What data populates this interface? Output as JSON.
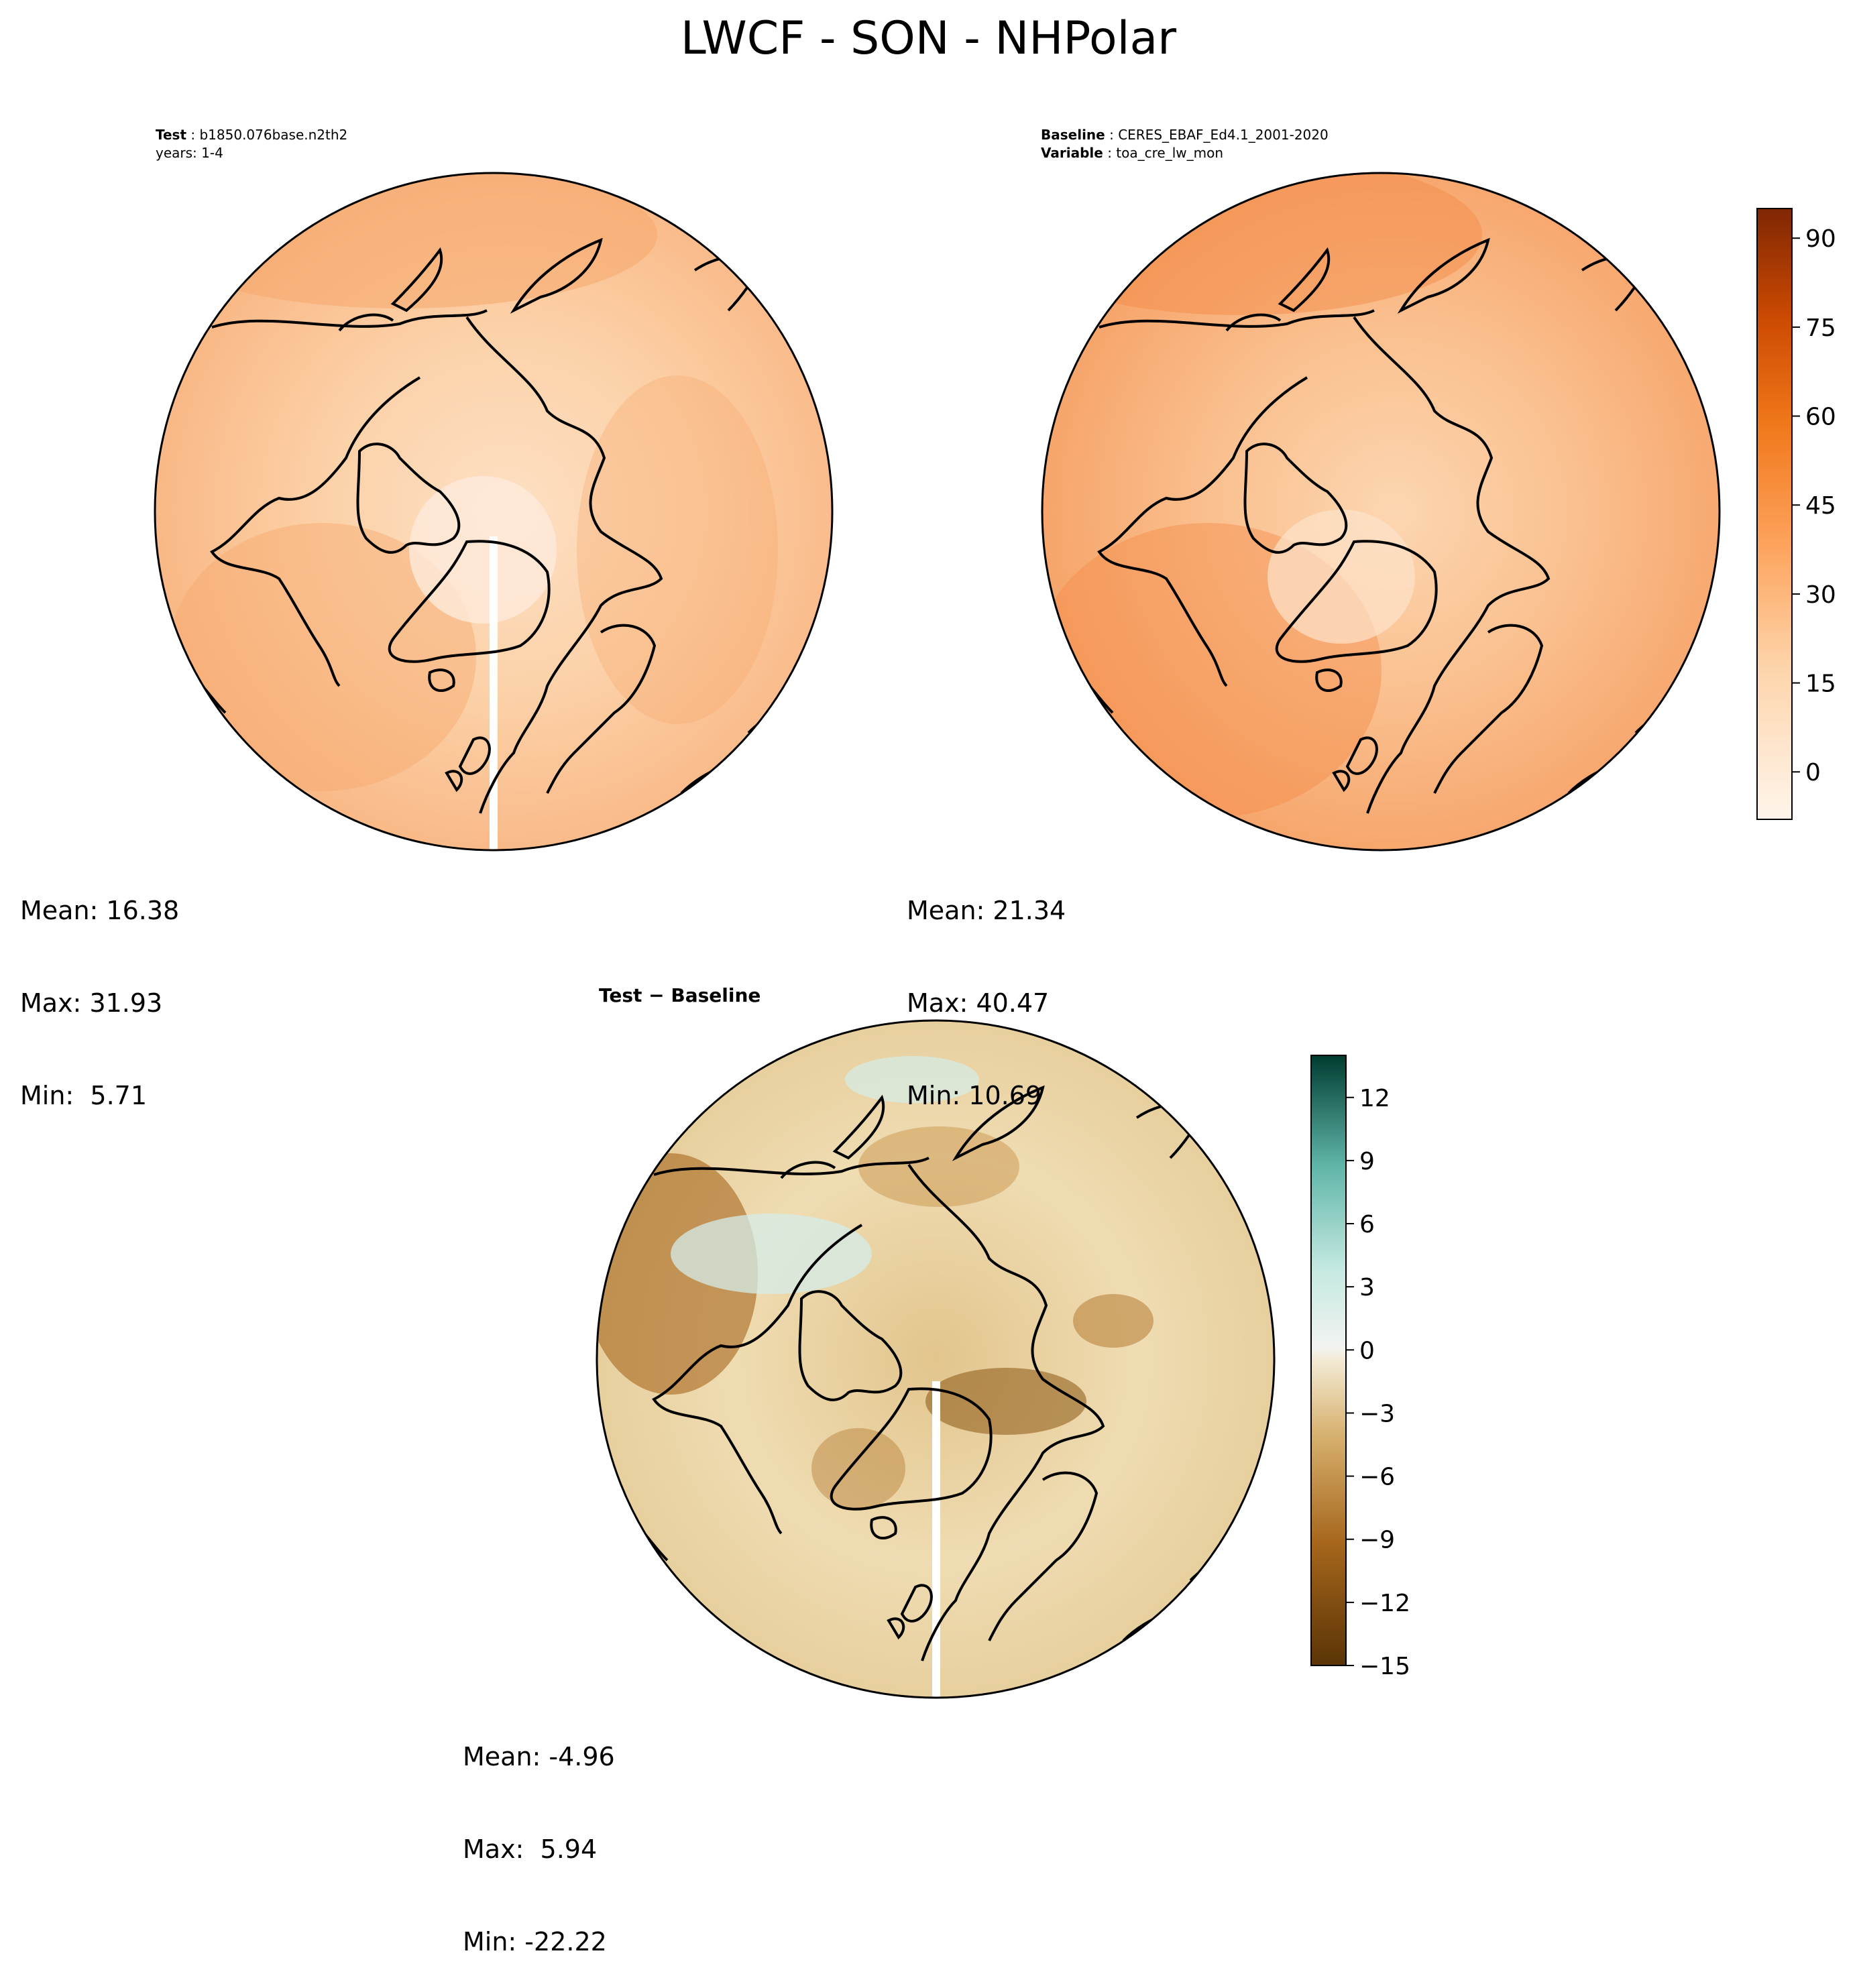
{
  "title": "LWCF - SON - NHPolar",
  "panels": {
    "test": {
      "label_key": "Test",
      "label_value": "b1850.076base.n2th2",
      "years": "years: 1-4",
      "mean": "Mean: 16.38",
      "max": "Max: 31.93",
      "min": "Min:  5.71"
    },
    "baseline": {
      "label_key": "Baseline",
      "label_value": "CERES_EBAF_Ed4.1_2001-2020",
      "variable_key": "Variable",
      "variable_value": "toa_cre_lw_mon",
      "mean": "Mean: 21.34",
      "max": "Max: 40.47",
      "min": "Min: 10.69"
    },
    "diff": {
      "title": "Test − Baseline",
      "mean": "Mean: -4.96",
      "max": "Max:  5.94",
      "min": "Min: -22.22"
    }
  },
  "colorbars": {
    "main": {
      "ticks": [
        "90",
        "75",
        "60",
        "45",
        "30",
        "15",
        "0"
      ],
      "range": [
        -8,
        95
      ],
      "colormap": "Oranges"
    },
    "diff": {
      "ticks": [
        "12",
        "9",
        "6",
        "3",
        "0",
        "−3",
        "−6",
        "−9",
        "−12",
        "−15"
      ],
      "range": [
        -15,
        14
      ],
      "colormap": "BrBG"
    }
  },
  "colors": {
    "test_fill": "#fbc79a",
    "baseline_fill": "#f8b27d",
    "diff_fill": "#ecd7a6",
    "coast": "#000000"
  }
}
